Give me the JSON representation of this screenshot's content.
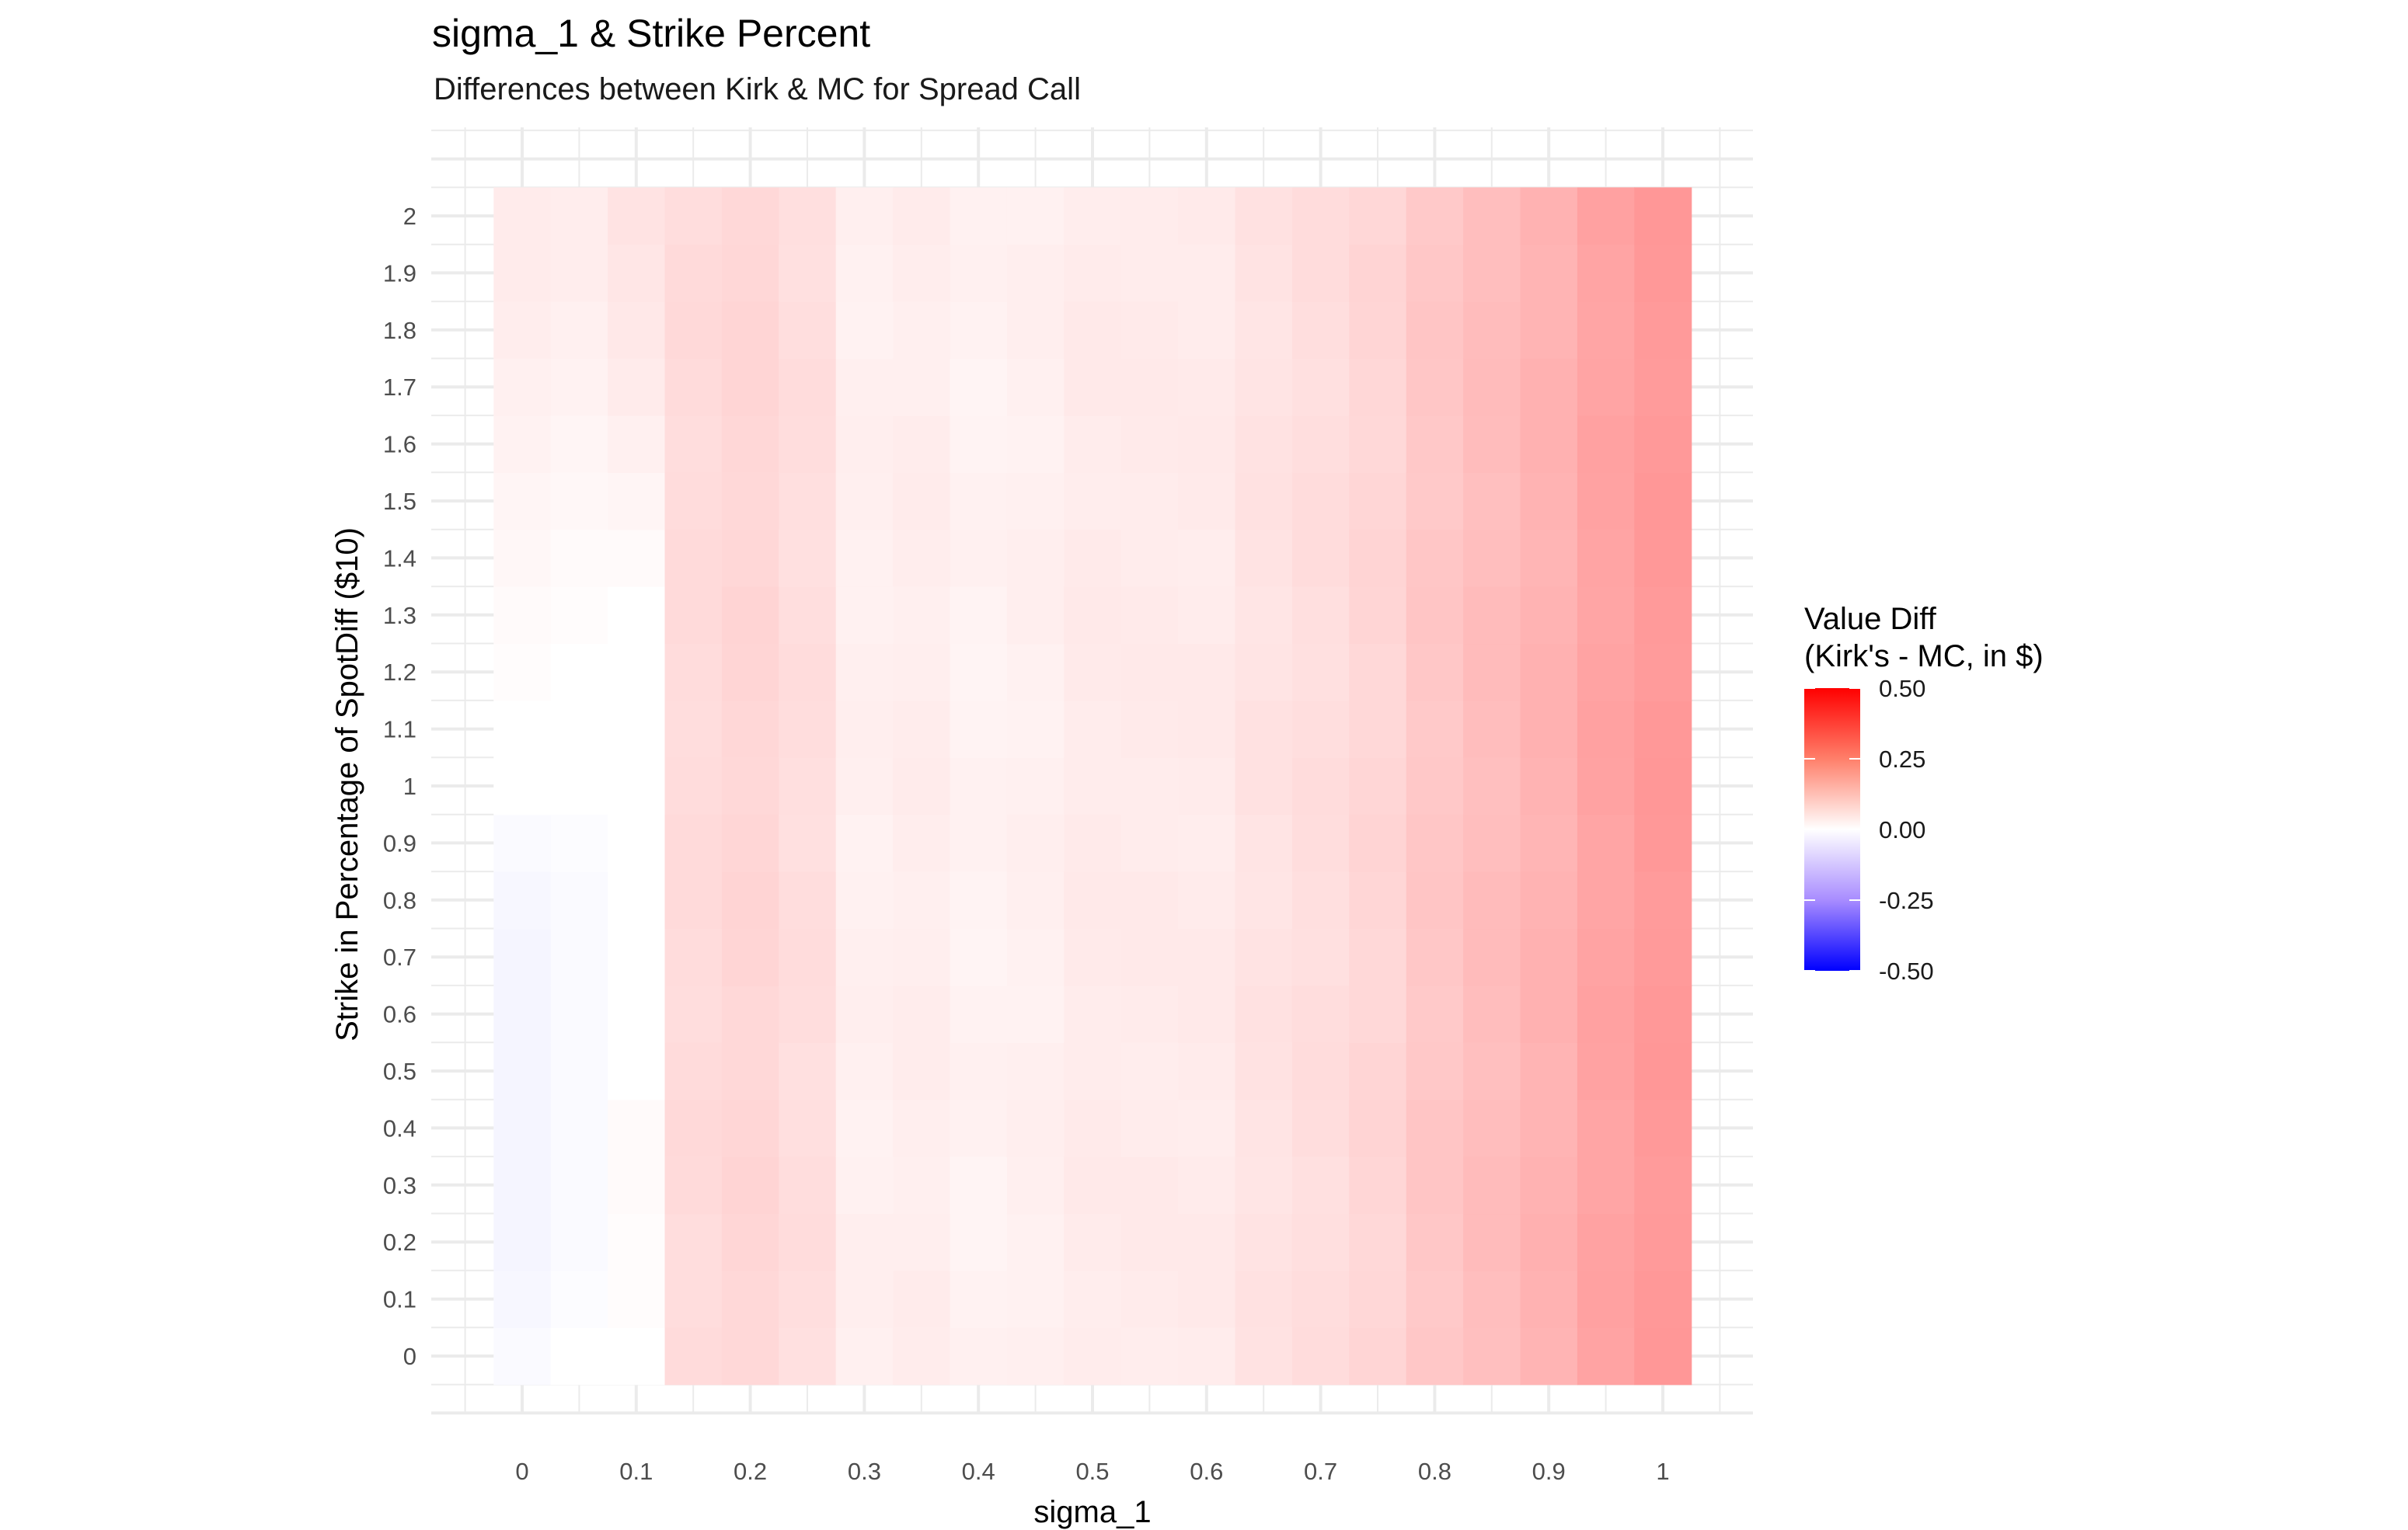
{
  "chart_data": {
    "type": "heatmap",
    "title": "sigma_1 & Strike Percent",
    "subtitle": "Differences between Kirk & MC for Spread Call",
    "xlabel": "sigma_1",
    "ylabel": "Strike in Percentage of SpotDiff ($10)",
    "x_values": [
      0,
      0.05,
      0.1,
      0.15,
      0.2,
      0.25,
      0.3,
      0.35,
      0.4,
      0.45,
      0.5,
      0.55,
      0.6,
      0.65,
      0.7,
      0.75,
      0.8,
      0.85,
      0.9,
      0.95,
      1
    ],
    "y_values": [
      0,
      0.1,
      0.2,
      0.3,
      0.4,
      0.5,
      0.6,
      0.7,
      0.8,
      0.9,
      1,
      1.1,
      1.2,
      1.3,
      1.4,
      1.5,
      1.6,
      1.7,
      1.8,
      1.9,
      2
    ],
    "x_tick_labels": [
      "0",
      "0.1",
      "0.2",
      "0.3",
      "0.4",
      "0.5",
      "0.6",
      "0.7",
      "0.8",
      "0.9",
      "1"
    ],
    "y_tick_labels": [
      "0",
      "0.1",
      "0.2",
      "0.3",
      "0.4",
      "0.5",
      "0.6",
      "0.7",
      "0.8",
      "0.9",
      "1",
      "1.1",
      "1.2",
      "1.3",
      "1.4",
      "1.5",
      "1.6",
      "1.7",
      "1.8",
      "1.9",
      "2"
    ],
    "column_base_values": [
      0.04,
      0.035,
      0.055,
      0.07,
      0.08,
      0.065,
      0.03,
      0.035,
      0.025,
      0.03,
      0.04,
      0.04,
      0.04,
      0.055,
      0.065,
      0.08,
      0.11,
      0.13,
      0.15,
      0.18,
      0.2
    ],
    "low_strike_values": {
      "col0": [
        -0.01,
        -0.015,
        -0.02,
        -0.02,
        -0.02,
        -0.02,
        -0.02,
        -0.02,
        -0.015,
        -0.01,
        0.0,
        0.0,
        0.005,
        0.01,
        0.015,
        0.02,
        0.025,
        0.03,
        0.035,
        0.04,
        0.04
      ],
      "col1": [
        0.0,
        -0.005,
        -0.01,
        -0.01,
        -0.01,
        -0.01,
        -0.01,
        -0.01,
        -0.01,
        -0.005,
        0.0,
        0.0,
        0.0,
        0.005,
        0.01,
        0.015,
        0.02,
        0.025,
        0.03,
        0.035,
        0.035
      ],
      "col2": [
        0.0,
        0.005,
        0.005,
        0.01,
        0.01,
        0.0,
        0.0,
        0.0,
        0.0,
        0.0,
        0.0,
        0.0,
        0.0,
        0.0,
        0.01,
        0.02,
        0.03,
        0.04,
        0.045,
        0.05,
        0.055
      ]
    },
    "color_scale": {
      "low": "#0000ff",
      "mid": "#ffffff",
      "high": "#ff0000",
      "limits": [
        -0.5,
        0.5
      ]
    },
    "legend": {
      "title_line1": "Value Diff",
      "title_line2": "(Kirk's - MC, in $)",
      "labels": [
        "0.50",
        "0.25",
        "0.00",
        "-0.25",
        "-0.50"
      ],
      "placement": "right"
    },
    "grid": true
  }
}
